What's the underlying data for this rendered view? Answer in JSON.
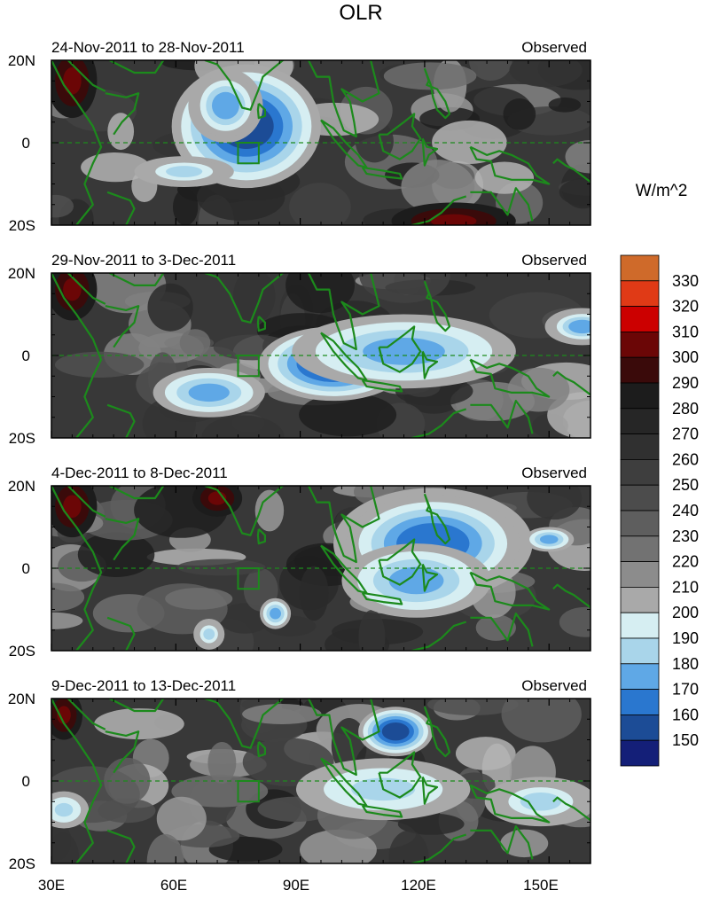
{
  "chart_data": {
    "type": "heatmap",
    "title": "OLR",
    "unit_label": "W/m^2",
    "xticks": [
      "30E",
      "60E",
      "90E",
      "120E",
      "150E"
    ],
    "yticks": [
      "20N",
      "0",
      "20S"
    ],
    "x_range_deg_east": [
      30,
      160
    ],
    "y_range_deg_lat": [
      -20,
      20
    ],
    "box_region": {
      "lon": [
        75,
        80
      ],
      "lat": [
        -5,
        0
      ]
    },
    "panels": [
      {
        "period": "24-Nov-2011 to 28-Nov-2011",
        "label": "Observed",
        "features": [
          {
            "lon": 77,
            "lat": 4,
            "rx": 12,
            "ry": 10,
            "value": 155
          },
          {
            "lon": 72,
            "lat": 9,
            "rx": 6,
            "ry": 6,
            "value": 175
          },
          {
            "lon": 62,
            "lat": -7,
            "rx": 8,
            "ry": 2.5,
            "value": 185
          },
          {
            "lon": 35,
            "lat": 15,
            "rx": 4,
            "ry": 6,
            "value": 300
          },
          {
            "lon": 127,
            "lat": -19,
            "rx": 10,
            "ry": 3,
            "value": 300
          }
        ]
      },
      {
        "period": "29-Nov-2011 to 3-Dec-2011",
        "label": "Observed",
        "features": [
          {
            "lon": 98,
            "lat": -2,
            "rx": 12,
            "ry": 6,
            "value": 155
          },
          {
            "lon": 115,
            "lat": 1,
            "rx": 18,
            "ry": 6,
            "value": 180
          },
          {
            "lon": 68,
            "lat": -9,
            "rx": 9,
            "ry": 4,
            "value": 180
          },
          {
            "lon": 158,
            "lat": 7,
            "rx": 6,
            "ry": 3,
            "value": 175
          },
          {
            "lon": 35,
            "lat": 16,
            "rx": 4,
            "ry": 5,
            "value": 300
          }
        ]
      },
      {
        "period": "4-Dec-2011 to 8-Dec-2011",
        "label": "Observed",
        "features": [
          {
            "lon": 122,
            "lat": 6,
            "rx": 16,
            "ry": 9,
            "value": 165
          },
          {
            "lon": 118,
            "lat": -3,
            "rx": 12,
            "ry": 6,
            "value": 180
          },
          {
            "lon": 150,
            "lat": 7,
            "rx": 4,
            "ry": 2,
            "value": 180
          },
          {
            "lon": 84,
            "lat": -11,
            "rx": 2.5,
            "ry": 2.5,
            "value": 180
          },
          {
            "lon": 68,
            "lat": -16,
            "rx": 2.5,
            "ry": 2.5,
            "value": 185
          },
          {
            "lon": 35,
            "lat": 15,
            "rx": 4,
            "ry": 5,
            "value": 300
          },
          {
            "lon": 70,
            "lat": 17,
            "rx": 4,
            "ry": 3,
            "value": 300
          }
        ]
      },
      {
        "period": "9-Dec-2011 to 13-Dec-2011",
        "label": "Observed",
        "features": [
          {
            "lon": 113,
            "lat": 12,
            "rx": 6,
            "ry": 4,
            "value": 160
          },
          {
            "lon": 110,
            "lat": -2,
            "rx": 14,
            "ry": 5,
            "value": 190
          },
          {
            "lon": 148,
            "lat": -5,
            "rx": 9,
            "ry": 4,
            "value": 185
          },
          {
            "lon": 33,
            "lat": -7,
            "rx": 4,
            "ry": 3,
            "value": 190
          },
          {
            "lon": 33,
            "lat": 16,
            "rx": 3,
            "ry": 4,
            "value": 300
          }
        ]
      }
    ],
    "colorbar": {
      "labels": [
        "330",
        "320",
        "310",
        "300",
        "290",
        "280",
        "270",
        "260",
        "250",
        "240",
        "230",
        "220",
        "210",
        "200",
        "190",
        "180",
        "170",
        "160",
        "150"
      ],
      "colors": [
        "#CF6A2A",
        "#E03A16",
        "#CC0000",
        "#6B0606",
        "#3A0A0A",
        "#1C1C1C",
        "#262626",
        "#303030",
        "#3E3E3E",
        "#4C4C4C",
        "#5E5E5E",
        "#727272",
        "#8C8C8C",
        "#A9A9A9",
        "#D6EEF2",
        "#A9D5EA",
        "#5FA8E6",
        "#2A77CF",
        "#1C4C96",
        "#141F78"
      ]
    }
  },
  "colors": {
    "coastline": "#1C8A1C",
    "frame": "#000000"
  }
}
